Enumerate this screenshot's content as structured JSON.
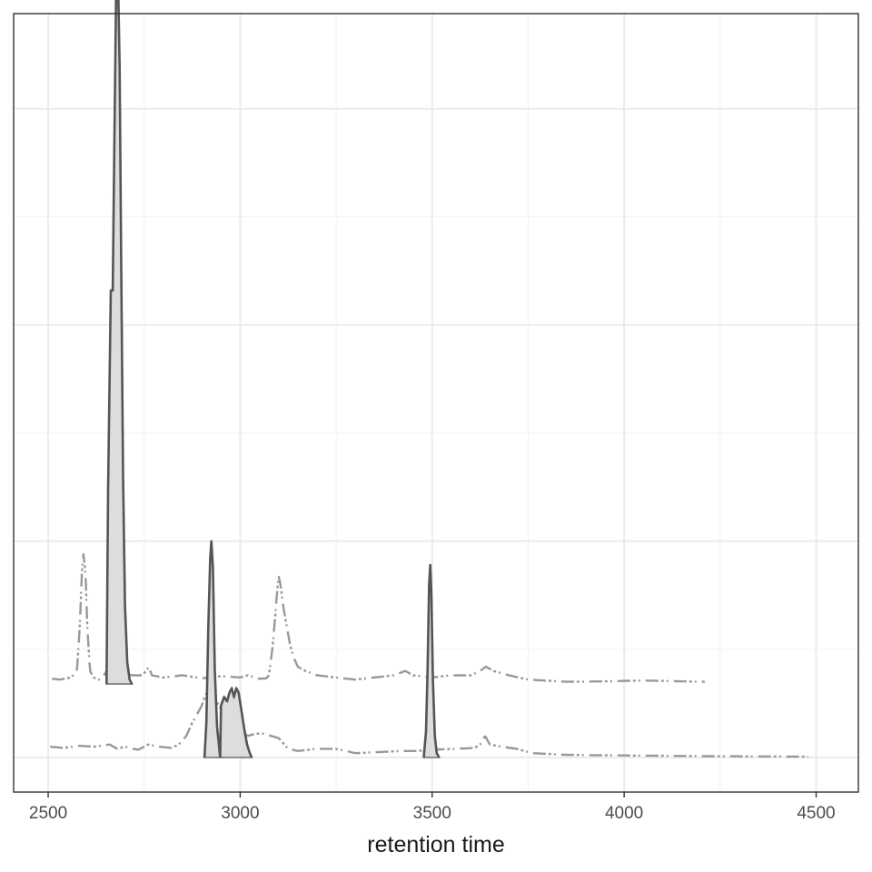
{
  "chart_data": {
    "type": "line",
    "title": "",
    "xlabel": "retention time",
    "ylabel": "",
    "xlim": [
      2410,
      4610
    ],
    "ylim": [
      -0.08,
      1.72
    ],
    "x_ticks": [
      2500,
      3000,
      3500,
      4000,
      4500
    ],
    "x_tick_labels": [
      "2500",
      "3000",
      "3500",
      "4000",
      "4500"
    ],
    "y_major_gridlines": [
      0,
      0.5,
      1.0,
      1.5
    ],
    "y_minor_gridlines": [
      0.25,
      0.75,
      1.25,
      1.75
    ],
    "y_tick_labels_shown": false,
    "grid": true,
    "legend": "none",
    "colors": {
      "panel_border": "#333333",
      "grid_major": "#ebebeb",
      "grid_minor": "#f2f2f2",
      "trace_faint": "#999999",
      "trace_dark": "#555555",
      "peak_fill": "#dddddd",
      "peak_outline": "#8c8c8c"
    },
    "series": [
      {
        "style": "background-trace",
        "baseline": 0.18,
        "points": [
          [
            2510,
            0.182
          ],
          [
            2530,
            0.18
          ],
          [
            2560,
            0.185
          ],
          [
            2575,
            0.2
          ],
          [
            2582,
            0.3
          ],
          [
            2588,
            0.43
          ],
          [
            2592,
            0.47
          ],
          [
            2597,
            0.43
          ],
          [
            2602,
            0.3
          ],
          [
            2609,
            0.2
          ],
          [
            2618,
            0.185
          ],
          [
            2632,
            0.18
          ],
          [
            2645,
            0.19
          ],
          [
            2652,
            0.2
          ],
          [
            2720,
            0.19
          ],
          [
            2745,
            0.19
          ],
          [
            2755,
            0.2
          ],
          [
            2762,
            0.21
          ],
          [
            2770,
            0.19
          ],
          [
            2800,
            0.185
          ],
          [
            2850,
            0.19
          ],
          [
            2900,
            0.183
          ],
          [
            2950,
            0.188
          ],
          [
            3000,
            0.185
          ],
          [
            3020,
            0.19
          ],
          [
            3050,
            0.182
          ],
          [
            3068,
            0.183
          ],
          [
            3075,
            0.19
          ],
          [
            3085,
            0.26
          ],
          [
            3095,
            0.37
          ],
          [
            3100,
            0.42
          ],
          [
            3105,
            0.4
          ],
          [
            3112,
            0.35
          ],
          [
            3120,
            0.31
          ],
          [
            3130,
            0.26
          ],
          [
            3140,
            0.23
          ],
          [
            3150,
            0.21
          ],
          [
            3170,
            0.2
          ],
          [
            3200,
            0.19
          ],
          [
            3250,
            0.185
          ],
          [
            3300,
            0.18
          ],
          [
            3400,
            0.19
          ],
          [
            3430,
            0.2
          ],
          [
            3450,
            0.19
          ],
          [
            3500,
            0.185
          ],
          [
            3550,
            0.19
          ],
          [
            3600,
            0.19
          ],
          [
            3625,
            0.2
          ],
          [
            3640,
            0.21
          ],
          [
            3660,
            0.2
          ],
          [
            3700,
            0.19
          ],
          [
            3750,
            0.18
          ],
          [
            3850,
            0.175
          ],
          [
            3950,
            0.176
          ],
          [
            4050,
            0.178
          ],
          [
            4150,
            0.176
          ],
          [
            4210,
            0.175
          ]
        ]
      },
      {
        "style": "background-trace",
        "baseline": 0.0,
        "points": [
          [
            2505,
            0.025
          ],
          [
            2540,
            0.022
          ],
          [
            2580,
            0.027
          ],
          [
            2620,
            0.025
          ],
          [
            2660,
            0.03
          ],
          [
            2680,
            0.02
          ],
          [
            2700,
            0.025
          ],
          [
            2720,
            0.02
          ],
          [
            2735,
            0.018
          ],
          [
            2760,
            0.03
          ],
          [
            2790,
            0.025
          ],
          [
            2820,
            0.022
          ],
          [
            2840,
            0.03
          ],
          [
            2860,
            0.05
          ],
          [
            2875,
            0.08
          ],
          [
            2888,
            0.1
          ],
          [
            2900,
            0.12
          ],
          [
            2908,
            0.14
          ],
          [
            2918,
            0.16
          ],
          [
            2930,
            0.14
          ],
          [
            2945,
            0.12
          ],
          [
            2960,
            0.09
          ],
          [
            2980,
            0.07
          ],
          [
            3000,
            0.06
          ],
          [
            3020,
            0.05
          ],
          [
            3040,
            0.055
          ],
          [
            3060,
            0.055
          ],
          [
            3080,
            0.05
          ],
          [
            3100,
            0.045
          ],
          [
            3125,
            0.02
          ],
          [
            3150,
            0.015
          ],
          [
            3200,
            0.02
          ],
          [
            3250,
            0.02
          ],
          [
            3300,
            0.01
          ],
          [
            3350,
            0.012
          ],
          [
            3420,
            0.015
          ],
          [
            3460,
            0.015
          ],
          [
            3500,
            0.018
          ],
          [
            3560,
            0.02
          ],
          [
            3610,
            0.022
          ],
          [
            3625,
            0.03
          ],
          [
            3638,
            0.05
          ],
          [
            3650,
            0.03
          ],
          [
            3680,
            0.025
          ],
          [
            3720,
            0.02
          ],
          [
            3760,
            0.01
          ],
          [
            3850,
            0.006
          ],
          [
            3950,
            0.005
          ],
          [
            4100,
            0.004
          ],
          [
            4200,
            0.003
          ],
          [
            4480,
            0.002
          ]
        ]
      },
      {
        "style": "peak",
        "baseline": 0.17,
        "shaded_range": [
          2652,
          2718
        ],
        "points": [
          [
            2652,
            0.17
          ],
          [
            2656,
            0.62
          ],
          [
            2663,
            1.08
          ],
          [
            2668,
            1.08
          ],
          [
            2672,
            1.4
          ],
          [
            2677,
            1.78
          ],
          [
            2681,
            1.84
          ],
          [
            2686,
            1.6
          ],
          [
            2690,
            1.15
          ],
          [
            2695,
            0.65
          ],
          [
            2700,
            0.35
          ],
          [
            2706,
            0.22
          ],
          [
            2712,
            0.18
          ],
          [
            2718,
            0.17
          ]
        ]
      },
      {
        "style": "peak",
        "baseline": 0.0,
        "shaded_range": [
          2907,
          2948
        ],
        "points": [
          [
            2907,
            0.0
          ],
          [
            2912,
            0.08
          ],
          [
            2917,
            0.3
          ],
          [
            2922,
            0.46
          ],
          [
            2925,
            0.5
          ],
          [
            2929,
            0.44
          ],
          [
            2934,
            0.2
          ],
          [
            2940,
            0.07
          ],
          [
            2948,
            0.0
          ]
        ]
      },
      {
        "style": "peak",
        "baseline": 0.0,
        "shaded_range": [
          2948,
          3030
        ],
        "points": [
          [
            2948,
            0.0
          ],
          [
            2950,
            0.12
          ],
          [
            2958,
            0.14
          ],
          [
            2966,
            0.13
          ],
          [
            2972,
            0.15
          ],
          [
            2978,
            0.16
          ],
          [
            2984,
            0.14
          ],
          [
            2990,
            0.16
          ],
          [
            2996,
            0.15
          ],
          [
            3003,
            0.11
          ],
          [
            3010,
            0.07
          ],
          [
            3018,
            0.03
          ],
          [
            3025,
            0.01
          ],
          [
            3030,
            0.0
          ]
        ]
      },
      {
        "style": "peak",
        "baseline": 0.0,
        "shaded_range": [
          3478,
          3518
        ],
        "points": [
          [
            3478,
            0.0
          ],
          [
            3484,
            0.06
          ],
          [
            3488,
            0.2
          ],
          [
            3492,
            0.4
          ],
          [
            3495,
            0.445
          ],
          [
            3498,
            0.38
          ],
          [
            3502,
            0.18
          ],
          [
            3507,
            0.05
          ],
          [
            3512,
            0.01
          ],
          [
            3518,
            0.0
          ]
        ]
      }
    ]
  }
}
